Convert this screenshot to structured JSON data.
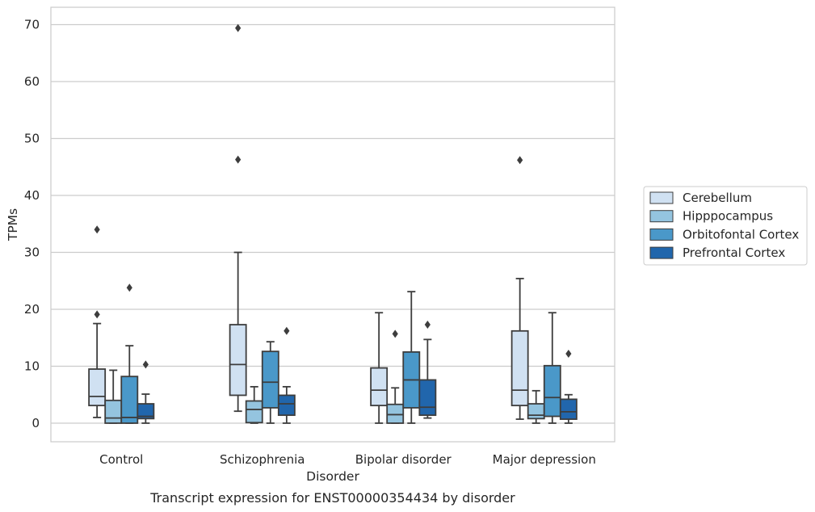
{
  "chart_data": {
    "type": "box",
    "title": "",
    "caption": "Transcript expression for ENST00000354434 by disorder",
    "xlabel": "Disorder",
    "ylabel": "TPMs",
    "ylim": [
      -3.3,
      73
    ],
    "yticks": [
      0,
      10,
      20,
      30,
      40,
      50,
      60,
      70
    ],
    "grid": "horizontal",
    "legend_position": "right",
    "categories": [
      "Control",
      "Schizophrenia",
      "Bipolar disorder",
      "Major depression"
    ],
    "series": [
      {
        "name": "Cerebellum",
        "color": "#d0e1f2",
        "boxes": [
          {
            "whisker_low": 1.0,
            "q1": 3.1,
            "median": 4.7,
            "q3": 9.5,
            "whisker_high": 17.5,
            "outliers": [
              19.1,
              34.0
            ]
          },
          {
            "whisker_low": 2.1,
            "q1": 4.9,
            "median": 10.3,
            "q3": 17.3,
            "whisker_high": 30.0,
            "outliers": [
              46.3,
              69.4
            ]
          },
          {
            "whisker_low": 0.0,
            "q1": 3.1,
            "median": 5.8,
            "q3": 9.7,
            "whisker_high": 19.4,
            "outliers": []
          },
          {
            "whisker_low": 0.7,
            "q1": 3.1,
            "median": 5.8,
            "q3": 16.2,
            "whisker_high": 25.4,
            "outliers": [
              46.2
            ]
          }
        ]
      },
      {
        "name": "Hipppocampus",
        "color": "#94c4df",
        "boxes": [
          {
            "whisker_low": 0.0,
            "q1": 0.0,
            "median": 0.9,
            "q3": 4.0,
            "whisker_high": 9.3,
            "outliers": []
          },
          {
            "whisker_low": 0.0,
            "q1": 0.1,
            "median": 2.4,
            "q3": 3.9,
            "whisker_high": 6.4,
            "outliers": []
          },
          {
            "whisker_low": 0.0,
            "q1": 0.0,
            "median": 1.5,
            "q3": 3.3,
            "whisker_high": 6.2,
            "outliers": [
              15.7
            ]
          },
          {
            "whisker_low": 0.0,
            "q1": 0.8,
            "median": 1.4,
            "q3": 3.4,
            "whisker_high": 5.7,
            "outliers": []
          }
        ]
      },
      {
        "name": "Orbitofontal Cortex",
        "color": "#4a98c9",
        "boxes": [
          {
            "whisker_low": 0.0,
            "q1": 0.0,
            "median": 1.0,
            "q3": 8.2,
            "whisker_high": 13.6,
            "outliers": [
              23.8
            ]
          },
          {
            "whisker_low": 0.0,
            "q1": 2.7,
            "median": 7.2,
            "q3": 12.6,
            "whisker_high": 14.3,
            "outliers": []
          },
          {
            "whisker_low": 0.0,
            "q1": 2.7,
            "median": 7.6,
            "q3": 12.5,
            "whisker_high": 23.1,
            "outliers": []
          },
          {
            "whisker_low": 0.0,
            "q1": 1.2,
            "median": 4.5,
            "q3": 10.1,
            "whisker_high": 19.4,
            "outliers": []
          }
        ]
      },
      {
        "name": "Prefrontal Cortex",
        "color": "#2166ac",
        "boxes": [
          {
            "whisker_low": 0.0,
            "q1": 0.8,
            "median": 1.2,
            "q3": 3.4,
            "whisker_high": 5.1,
            "outliers": [
              10.3
            ]
          },
          {
            "whisker_low": 0.0,
            "q1": 1.4,
            "median": 3.4,
            "q3": 4.9,
            "whisker_high": 6.4,
            "outliers": [
              16.2
            ]
          },
          {
            "whisker_low": 0.9,
            "q1": 1.4,
            "median": 2.8,
            "q3": 7.6,
            "whisker_high": 14.7,
            "outliers": [
              17.3
            ]
          },
          {
            "whisker_low": 0.0,
            "q1": 0.7,
            "median": 2.0,
            "q3": 4.2,
            "whisker_high": 5.0,
            "outliers": [
              12.2
            ]
          }
        ]
      }
    ]
  }
}
